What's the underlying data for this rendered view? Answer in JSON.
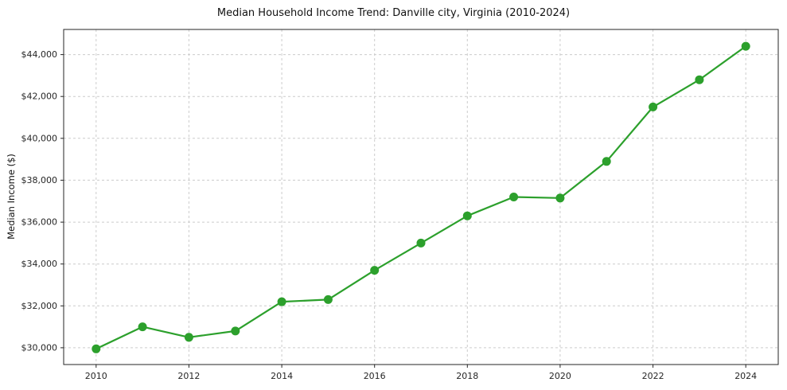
{
  "chart_data": {
    "type": "line",
    "title": "Median Household Income Trend: Danville city, Virginia (2010-2024)",
    "xlabel": "",
    "ylabel": "Median Income ($)",
    "x": [
      2010,
      2011,
      2012,
      2013,
      2014,
      2015,
      2016,
      2017,
      2018,
      2019,
      2020,
      2021,
      2022,
      2023,
      2024
    ],
    "values": [
      29950,
      31000,
      30500,
      30800,
      32200,
      32300,
      33700,
      35000,
      36300,
      37200,
      37150,
      38900,
      41500,
      42800,
      44400
    ],
    "xlim": [
      2009.3,
      2024.7
    ],
    "ylim": [
      29200,
      45200
    ],
    "x_ticks": [
      2010,
      2012,
      2014,
      2016,
      2018,
      2020,
      2022,
      2024
    ],
    "x_tick_labels": [
      "2010",
      "2012",
      "2014",
      "2016",
      "2018",
      "2020",
      "2022",
      "2024"
    ],
    "y_ticks": [
      30000,
      32000,
      34000,
      36000,
      38000,
      40000,
      42000,
      44000
    ],
    "y_tick_labels": [
      "$30,000",
      "$32,000",
      "$34,000",
      "$36,000",
      "$38,000",
      "$40,000",
      "$42,000",
      "$44,000"
    ],
    "grid": true,
    "grid_style": "dashed",
    "legend": "none",
    "colors": {
      "line": "#2ca02c",
      "marker": "#2ca02c",
      "grid": "#cccccc",
      "axis": "#262626",
      "tick_text": "#262626",
      "background": "#ffffff"
    }
  }
}
